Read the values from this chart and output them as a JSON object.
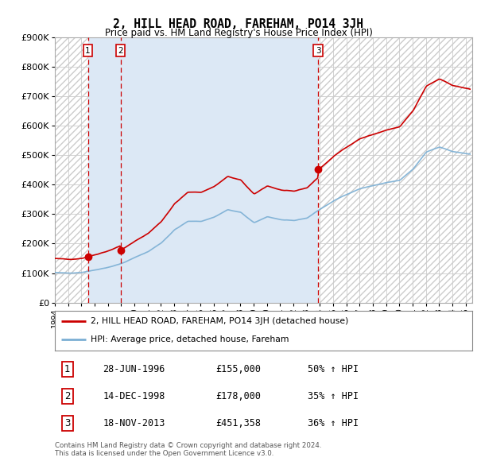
{
  "title": "2, HILL HEAD ROAD, FAREHAM, PO14 3JH",
  "subtitle": "Price paid vs. HM Land Registry's House Price Index (HPI)",
  "ylim": [
    0,
    900000
  ],
  "xlim_start": 1994.0,
  "xlim_end": 2025.5,
  "ytick_labels": [
    "£0",
    "£100K",
    "£200K",
    "£300K",
    "£400K",
    "£500K",
    "£600K",
    "£700K",
    "£800K",
    "£900K"
  ],
  "ytick_values": [
    0,
    100000,
    200000,
    300000,
    400000,
    500000,
    600000,
    700000,
    800000,
    900000
  ],
  "sale_dates": [
    1996.49,
    1998.95,
    2013.88
  ],
  "sale_prices": [
    155000,
    178000,
    451358
  ],
  "sale_labels": [
    "1",
    "2",
    "3"
  ],
  "legend_line1": "2, HILL HEAD ROAD, FAREHAM, PO14 3JH (detached house)",
  "legend_line2": "HPI: Average price, detached house, Fareham",
  "table_rows": [
    [
      "1",
      "28-JUN-1996",
      "£155,000",
      "50% ↑ HPI"
    ],
    [
      "2",
      "14-DEC-1998",
      "£178,000",
      "35% ↑ HPI"
    ],
    [
      "3",
      "18-NOV-2013",
      "£451,358",
      "36% ↑ HPI"
    ]
  ],
  "footnote1": "Contains HM Land Registry data © Crown copyright and database right 2024.",
  "footnote2": "This data is licensed under the Open Government Licence v3.0.",
  "property_color": "#cc0000",
  "hpi_color": "#7bafd4",
  "shade_color": "#dce8f5",
  "hatch_fill": "#e8e8e8"
}
